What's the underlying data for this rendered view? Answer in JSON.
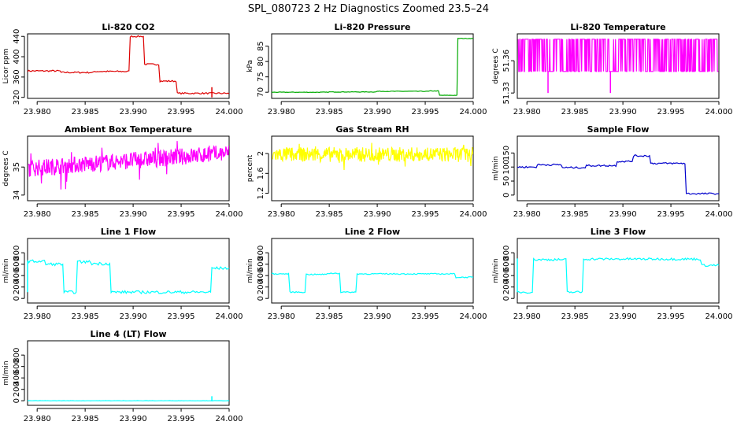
{
  "title": "SPL_080723  2 Hz Diagnostics Zoomed 23.5–24",
  "chart_data": [
    {
      "type": "line",
      "title": "Li-820 CO2",
      "ylabel": "Licor ppm",
      "color": "#dd0000",
      "xlim": [
        23.979,
        24.0
      ],
      "ylim": [
        318,
        445
      ],
      "xticks": [
        "23.980",
        "23.985",
        "23.990",
        "23.995",
        "24.000"
      ],
      "yticks": [
        320,
        360,
        400,
        440
      ],
      "noise": 1.5,
      "segments": [
        [
          23.979,
          372
        ],
        [
          23.9825,
          369
        ],
        [
          23.986,
          371
        ],
        [
          23.9897,
          440
        ],
        [
          23.9912,
          385
        ],
        [
          23.9928,
          352
        ],
        [
          23.9946,
          328
        ],
        [
          24.0,
          327
        ]
      ],
      "spikes": [
        [
          23.9982,
          340
        ],
        [
          23.9982,
          320
        ]
      ]
    },
    {
      "type": "line",
      "title": "Li-820 Pressure",
      "ylabel": "kPa",
      "color": "#00aa00",
      "xlim": [
        23.979,
        24.0
      ],
      "ylim": [
        68,
        89
      ],
      "xticks": [
        "23.980",
        "23.985",
        "23.990",
        "23.995",
        "24.000"
      ],
      "yticks": [
        70,
        75,
        80,
        85
      ],
      "noise": 0.08,
      "segments": [
        [
          23.979,
          70.0
        ],
        [
          23.985,
          70.1
        ],
        [
          23.99,
          70.3
        ],
        [
          23.9955,
          70.4
        ],
        [
          23.9965,
          69.0
        ],
        [
          23.9982,
          69.0
        ],
        [
          23.9984,
          87.5
        ],
        [
          24.0,
          87.5
        ]
      ],
      "spikes": []
    },
    {
      "type": "line",
      "title": "Li-820 Temperature",
      "ylabel": "degrees C",
      "color": "#ff00ff",
      "style": "binary",
      "xlim": [
        23.979,
        24.0
      ],
      "ylim": [
        51.325,
        51.385
      ],
      "xticks": [
        "23.980",
        "23.985",
        "23.990",
        "23.995",
        "24.000"
      ],
      "yticks": [
        51.33,
        51.36
      ],
      "levels": [
        51.35,
        51.38
      ],
      "spikes": [
        [
          23.9822,
          51.33
        ],
        [
          23.9887,
          51.33
        ]
      ]
    },
    {
      "type": "line",
      "title": "Ambient Box Temperature",
      "ylabel": "degrees C",
      "color": "#ff00ff",
      "style": "dense",
      "xlim": [
        23.979,
        24.0
      ],
      "ylim": [
        33.8,
        36.1
      ],
      "xticks": [
        "23.980",
        "23.985",
        "23.990",
        "23.995",
        "24.000"
      ],
      "yticks": [
        34.0,
        35.0
      ],
      "trend": [
        34.95,
        35.5
      ],
      "noise": 0.3
    },
    {
      "type": "line",
      "title": "Gas Stream RH",
      "ylabel": "percent",
      "color": "#ffff00",
      "style": "dense",
      "xlim": [
        23.979,
        24.0
      ],
      "ylim": [
        1.05,
        2.35
      ],
      "xticks": [
        "23.980",
        "23.985",
        "23.990",
        "23.995",
        "24.000"
      ],
      "yticks": [
        1.2,
        1.6,
        2.0
      ],
      "trend": [
        1.98,
        1.98
      ],
      "noise": 0.15
    },
    {
      "type": "line",
      "title": "Sample Flow",
      "ylabel": "ml/min",
      "color": "#0000cc",
      "xlim": [
        23.979,
        24.0
      ],
      "ylim": [
        -20,
        210
      ],
      "xticks": [
        "23.980",
        "23.985",
        "23.990",
        "23.995",
        "24.000"
      ],
      "yticks": [
        0,
        50,
        100,
        150
      ],
      "noise": 3,
      "segments": [
        [
          23.979,
          100
        ],
        [
          23.9811,
          108
        ],
        [
          23.9837,
          98
        ],
        [
          23.9862,
          105
        ],
        [
          23.9894,
          120
        ],
        [
          23.9911,
          140
        ],
        [
          23.9929,
          113
        ],
        [
          23.9966,
          5
        ],
        [
          24.0,
          5
        ]
      ],
      "spikes": []
    },
    {
      "type": "line",
      "title": "Line 1 Flow",
      "ylabel": "ml/min",
      "color": "#00ffff",
      "xlim": [
        23.979,
        24.0
      ],
      "ylim": [
        -80,
        1050
      ],
      "xticks": [
        "23.980",
        "23.985",
        "23.990",
        "23.995",
        "24.000"
      ],
      "yticks": [
        0,
        200,
        400,
        600,
        800
      ],
      "noise": 25,
      "segments": [
        [
          23.979,
          650
        ],
        [
          23.9809,
          600
        ],
        [
          23.9828,
          110
        ],
        [
          23.9842,
          640
        ],
        [
          23.9857,
          610
        ],
        [
          23.9877,
          110
        ],
        [
          23.9982,
          530
        ],
        [
          24.0,
          530
        ]
      ],
      "spikes": [
        [
          23.979,
          110
        ]
      ]
    },
    {
      "type": "line",
      "title": "Line 2 Flow",
      "ylabel": "ml/min",
      "color": "#00ffff",
      "xlim": [
        23.979,
        24.0
      ],
      "ylim": [
        -80,
        1050
      ],
      "xticks": [
        "23.980",
        "23.985",
        "23.990",
        "23.995",
        "24.000"
      ],
      "yticks": [
        0,
        200,
        400,
        600,
        800
      ],
      "noise": 10,
      "segments": [
        [
          23.979,
          430
        ],
        [
          23.9809,
          110
        ],
        [
          23.9826,
          420
        ],
        [
          23.9848,
          440
        ],
        [
          23.9862,
          110
        ],
        [
          23.9879,
          430
        ],
        [
          23.9982,
          370
        ],
        [
          24.0,
          370
        ]
      ],
      "spikes": []
    },
    {
      "type": "line",
      "title": "Line 3 Flow",
      "ylabel": "ml/min",
      "color": "#00ffff",
      "xlim": [
        23.979,
        24.0
      ],
      "ylim": [
        -80,
        1050
      ],
      "xticks": [
        "23.980",
        "23.985",
        "23.990",
        "23.995",
        "24.000"
      ],
      "yticks": [
        0,
        200,
        400,
        600,
        800
      ],
      "noise": 20,
      "segments": [
        [
          23.979,
          110
        ],
        [
          23.9807,
          680
        ],
        [
          23.9842,
          110
        ],
        [
          23.9859,
          690
        ],
        [
          23.9982,
          580
        ],
        [
          24.0,
          580
        ]
      ],
      "spikes": [
        [
          23.979,
          700
        ]
      ]
    },
    {
      "type": "line",
      "title": "Line 4 (LT) Flow",
      "ylabel": "ml/min",
      "color": "#00ffff",
      "xlim": [
        23.979,
        24.0
      ],
      "ylim": [
        -80,
        1050
      ],
      "xticks": [
        "23.980",
        "23.985",
        "23.990",
        "23.995",
        "24.000"
      ],
      "yticks": [
        0,
        200,
        400,
        600,
        800
      ],
      "noise": 3,
      "segments": [
        [
          23.979,
          0
        ],
        [
          24.0,
          0
        ]
      ],
      "spikes": [
        [
          23.9982,
          80
        ]
      ]
    }
  ]
}
